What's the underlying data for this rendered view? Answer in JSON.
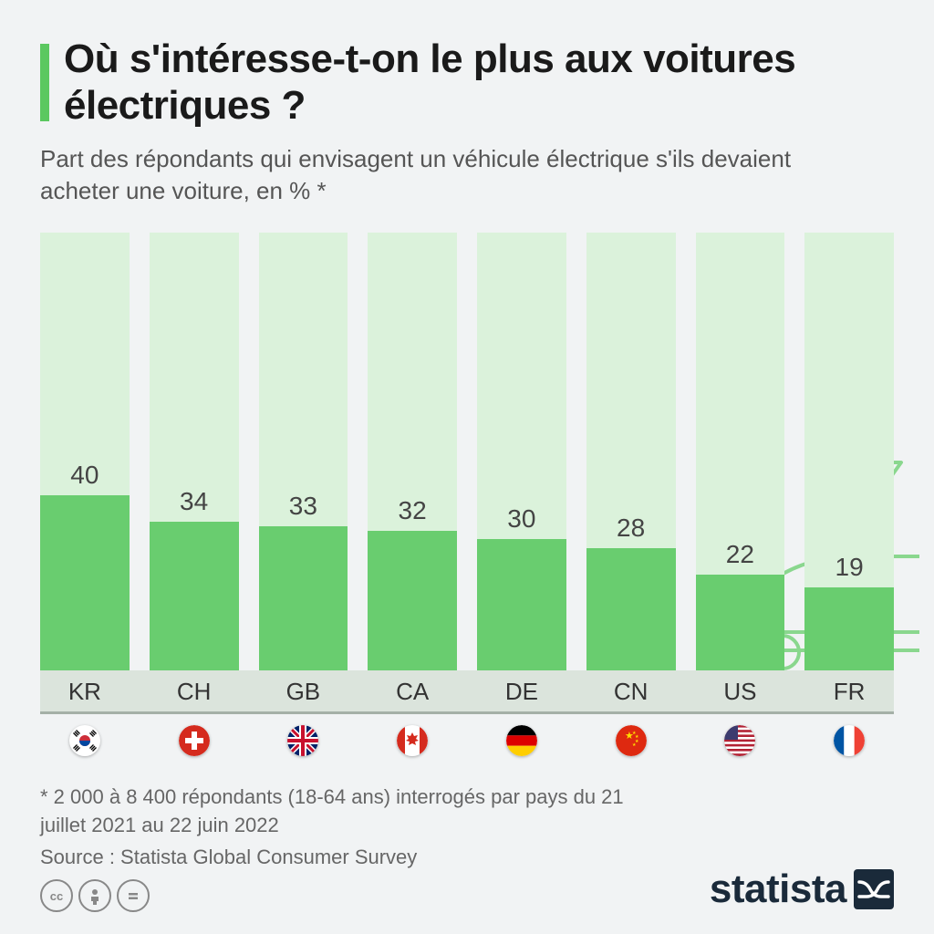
{
  "title": "Où s'intéresse-t-on le plus aux voitures électriques ?",
  "subtitle": "Part des répondants qui envisagent un véhicule électrique s'ils devaient acheter une voiture, en % *",
  "chart": {
    "type": "bar",
    "y_max": 100,
    "bar_bg_color": "#dbf2db",
    "bar_fill_color": "#69cd6f",
    "value_fontsize": 28,
    "label_fontsize": 26,
    "accent_color": "#5bc860",
    "countries": [
      {
        "code": "KR",
        "value": 40,
        "flag": "kr"
      },
      {
        "code": "CH",
        "value": 34,
        "flag": "ch"
      },
      {
        "code": "GB",
        "value": 33,
        "flag": "gb"
      },
      {
        "code": "CA",
        "value": 32,
        "flag": "ca"
      },
      {
        "code": "DE",
        "value": 30,
        "flag": "de"
      },
      {
        "code": "CN",
        "value": 28,
        "flag": "cn"
      },
      {
        "code": "US",
        "value": 22,
        "flag": "us"
      },
      {
        "code": "FR",
        "value": 19,
        "flag": "fr"
      }
    ],
    "deco_stroke": "#7fd584"
  },
  "footnote": "* 2 000 à 8 400 répondants (18-64 ans) interrogés par pays du 21 juillet 2021 au 22 juin 2022",
  "source_label": "Source : Statista Global Consumer Survey",
  "brand": "statista",
  "colors": {
    "page_bg": "#f1f3f4",
    "text_primary": "#1a1a1a",
    "text_secondary": "#555",
    "text_muted": "#666",
    "axis_strip": "#dbe4dc",
    "axis_line": "#a5b0a7"
  }
}
